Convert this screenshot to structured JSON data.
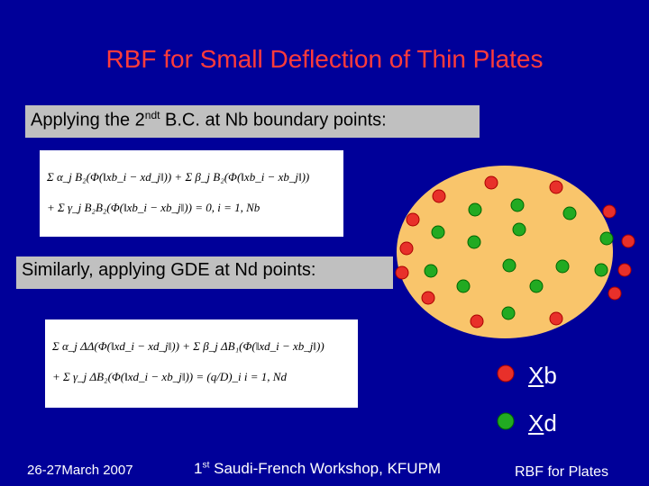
{
  "title": "RBF for Small Deflection of Thin Plates",
  "box1": {
    "before": "Applying the 2",
    "sup": "ndt",
    "after": " B.C.  at Nb boundary points:"
  },
  "equation1": [
    "Σ α_j B₂(Φ(‖xb_i − xd_j‖)) + Σ β_j B₂(Φ(‖xb_i − xb_j‖))",
    "+ Σ γ_j B₂B₂(Φ(‖xb_i − xb_j‖)) = 0,     i = 1, Nb"
  ],
  "box2": "Similarly, applying GDE at Nd points:",
  "equation2": [
    "Σ α_j ΔΔ(Φ(‖xd_i − xd_j‖)) + Σ β_j ΔB₁(Φ(‖xd_i − xb_j‖))",
    "+ Σ γ_j ΔB₂(Φ(‖xd_i − xb_j‖)) = (q/D)_i     i = 1, Nd"
  ],
  "legend": [
    {
      "underlined": "X",
      "rest": "b"
    },
    {
      "underlined": "X",
      "rest": "d"
    }
  ],
  "footer": {
    "date": "26-27March 2007",
    "event_sup": "st",
    "event_num": "1",
    "event": " Saudi-French Workshop, KFUPM",
    "short_title": "RBF for Plates"
  }
}
